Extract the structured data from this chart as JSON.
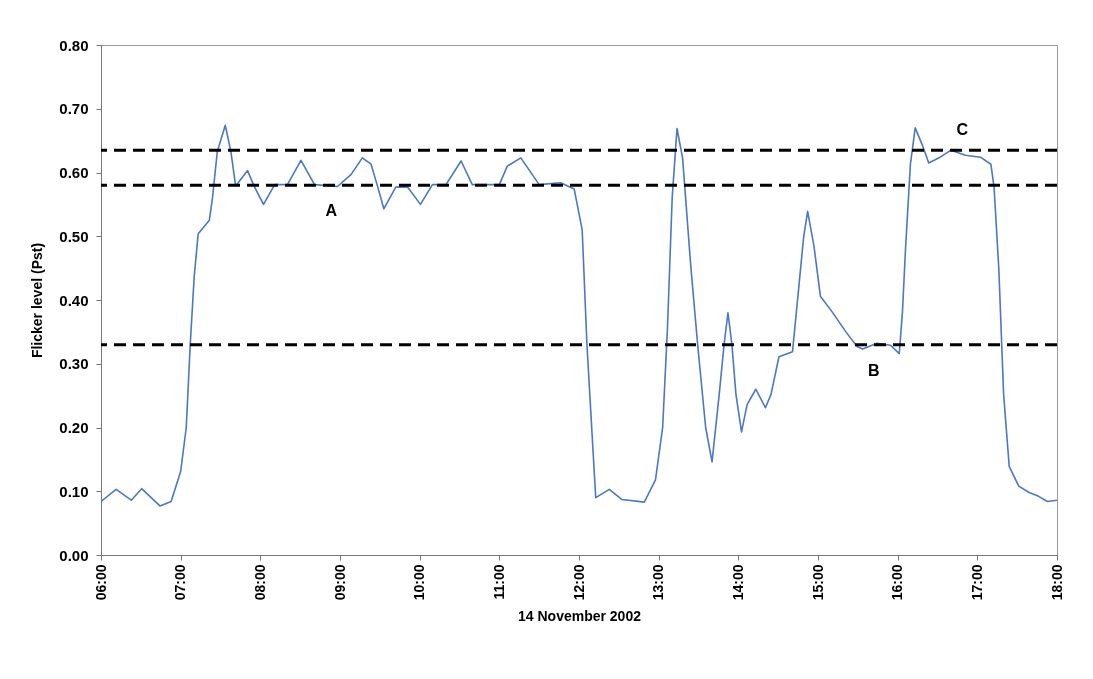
{
  "chart_data": {
    "type": "line",
    "xlabel": "14 November 2002",
    "ylabel": "Flicker level (Pst)",
    "x": [
      6.0,
      6.19,
      6.38,
      6.51,
      6.74,
      6.88,
      7.0,
      7.07,
      7.12,
      7.17,
      7.22,
      7.36,
      7.4,
      7.46,
      7.56,
      7.63,
      7.69,
      7.84,
      7.92,
      8.04,
      8.18,
      8.34,
      8.51,
      8.68,
      8.97,
      9.14,
      9.28,
      9.39,
      9.47,
      9.55,
      9.7,
      9.85,
      10.01,
      10.16,
      10.33,
      10.52,
      10.66,
      11.0,
      11.1,
      11.27,
      11.5,
      11.77,
      11.94,
      12.04,
      12.1,
      12.21,
      12.38,
      12.54,
      12.82,
      12.96,
      13.05,
      13.11,
      13.17,
      13.23,
      13.3,
      13.4,
      13.49,
      13.59,
      13.67,
      13.76,
      13.82,
      13.87,
      13.92,
      13.97,
      14.04,
      14.11,
      14.22,
      14.34,
      14.41,
      14.51,
      14.68,
      14.74,
      14.82,
      14.87,
      14.95,
      15.03,
      15.18,
      15.35,
      15.49,
      15.56,
      15.74,
      15.91,
      16.02,
      16.06,
      16.1,
      16.16,
      16.22,
      16.31,
      16.39,
      16.52,
      16.67,
      16.85,
      17.04,
      17.17,
      17.21,
      17.27,
      17.33,
      17.4,
      17.52,
      17.65,
      17.77,
      17.88,
      18.0
    ],
    "series": [
      {
        "color": "#4a78c8",
        "values": [
          0.084,
          0.103,
          0.086,
          0.104,
          0.077,
          0.084,
          0.131,
          0.2,
          0.33,
          0.437,
          0.504,
          0.525,
          0.561,
          0.633,
          0.674,
          0.633,
          0.579,
          0.603,
          0.579,
          0.55,
          0.581,
          0.581,
          0.619,
          0.581,
          0.578,
          0.597,
          0.623,
          0.613,
          0.579,
          0.543,
          0.577,
          0.577,
          0.55,
          0.581,
          0.581,
          0.618,
          0.581,
          0.581,
          0.61,
          0.623,
          0.581,
          0.584,
          0.574,
          0.51,
          0.329,
          0.09,
          0.103,
          0.087,
          0.083,
          0.118,
          0.2,
          0.355,
          0.561,
          0.669,
          0.623,
          0.458,
          0.329,
          0.2,
          0.146,
          0.252,
          0.329,
          0.38,
          0.329,
          0.252,
          0.193,
          0.236,
          0.26,
          0.231,
          0.252,
          0.311,
          0.319,
          0.396,
          0.499,
          0.539,
          0.484,
          0.406,
          0.381,
          0.35,
          0.327,
          0.323,
          0.332,
          0.329,
          0.316,
          0.381,
          0.484,
          0.613,
          0.67,
          0.643,
          0.615,
          0.623,
          0.635,
          0.627,
          0.624,
          0.613,
          0.577,
          0.448,
          0.252,
          0.139,
          0.108,
          0.098,
          0.092,
          0.084,
          0.086
        ]
      }
    ],
    "xlim": [
      6,
      18
    ],
    "xticks": [
      {
        "value": 6,
        "label": "06:00"
      },
      {
        "value": 7,
        "label": "07:00"
      },
      {
        "value": 8,
        "label": "08:00"
      },
      {
        "value": 9,
        "label": "09:00"
      },
      {
        "value": 10,
        "label": "10:00"
      },
      {
        "value": 11,
        "label": "11:00"
      },
      {
        "value": 12,
        "label": "12:00"
      },
      {
        "value": 13,
        "label": "13:00"
      },
      {
        "value": 14,
        "label": "14:00"
      },
      {
        "value": 15,
        "label": "15:00"
      },
      {
        "value": 16,
        "label": "16:00"
      },
      {
        "value": 17,
        "label": "17:00"
      },
      {
        "value": 18,
        "label": "18:00"
      }
    ],
    "ylim": [
      0,
      0.8
    ],
    "yticks": [
      {
        "value": 0,
        "label": "0.00"
      },
      {
        "value": 0.1,
        "label": "0.10"
      },
      {
        "value": 0.2,
        "label": "0.20"
      },
      {
        "value": 0.3,
        "label": "0.30"
      },
      {
        "value": 0.4,
        "label": "0.40"
      },
      {
        "value": 0.5,
        "label": "0.50"
      },
      {
        "value": 0.6,
        "label": "0.60"
      },
      {
        "value": 0.7,
        "label": "0.70"
      },
      {
        "value": 0.8,
        "label": "0.80"
      }
    ],
    "ref_lines": [
      {
        "axis": "y",
        "value": 0.635,
        "color": "#000000",
        "line_style": "dashed"
      },
      {
        "axis": "y",
        "value": 0.58,
        "color": "#000000",
        "line_style": "dashed"
      },
      {
        "axis": "y",
        "value": 0.33,
        "color": "#000000",
        "line_style": "dashed"
      }
    ],
    "annotations": [
      {
        "text": "A",
        "x": 8.89,
        "y": 0.58
      },
      {
        "text": "B",
        "x": 15.7,
        "y": 0.33
      },
      {
        "text": "C",
        "x": 16.81,
        "y": 0.635
      }
    ],
    "grid": false,
    "marker": "none",
    "line_style": "solid"
  }
}
